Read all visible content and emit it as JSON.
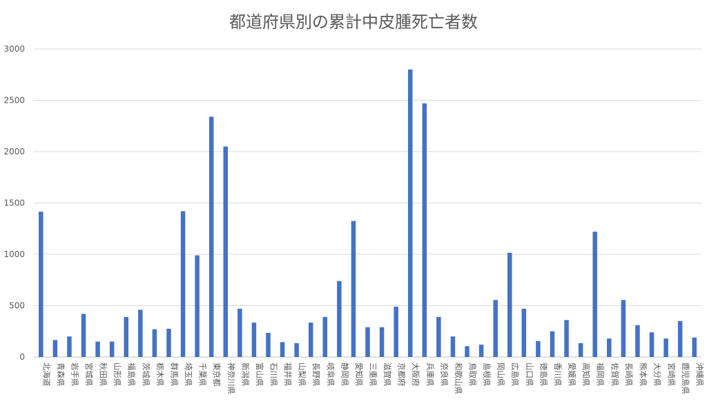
{
  "chart_data": {
    "type": "bar",
    "title": "都道府県別の累計中皮腫死亡者数",
    "xlabel": "",
    "ylabel": "",
    "ylim": [
      0,
      3000
    ],
    "yticks": [
      0,
      500,
      1000,
      1500,
      2000,
      2500,
      3000
    ],
    "grid": true,
    "legend": "none",
    "bar_color": "#4472C4",
    "categories": [
      "北海道",
      "青森県",
      "岩手県",
      "宮城県",
      "秋田県",
      "山形県",
      "福島県",
      "茨城県",
      "栃木県",
      "群馬県",
      "埼玉県",
      "千葉県",
      "東京都",
      "神奈川県",
      "新潟県",
      "富山県",
      "石川県",
      "福井県",
      "山梨県",
      "長野県",
      "岐阜県",
      "静岡県",
      "愛知県",
      "三重県",
      "滋賀県",
      "京都府",
      "大阪府",
      "兵庫県",
      "奈良県",
      "和歌山県",
      "鳥取県",
      "島根県",
      "岡山県",
      "広島県",
      "山口県",
      "徳島県",
      "香川県",
      "愛媛県",
      "高知県",
      "福岡県",
      "佐賀県",
      "長崎県",
      "熊本県",
      "大分県",
      "宮崎県",
      "鹿児島県",
      "沖縄県"
    ],
    "values": [
      1415,
      165,
      200,
      420,
      150,
      150,
      390,
      460,
      270,
      275,
      1420,
      990,
      2340,
      2050,
      470,
      335,
      235,
      145,
      135,
      335,
      390,
      740,
      1325,
      290,
      290,
      490,
      2800,
      2470,
      390,
      200,
      105,
      120,
      555,
      1015,
      470,
      155,
      250,
      360,
      135,
      1220,
      180,
      555,
      310,
      240,
      180,
      350,
      190
    ]
  }
}
